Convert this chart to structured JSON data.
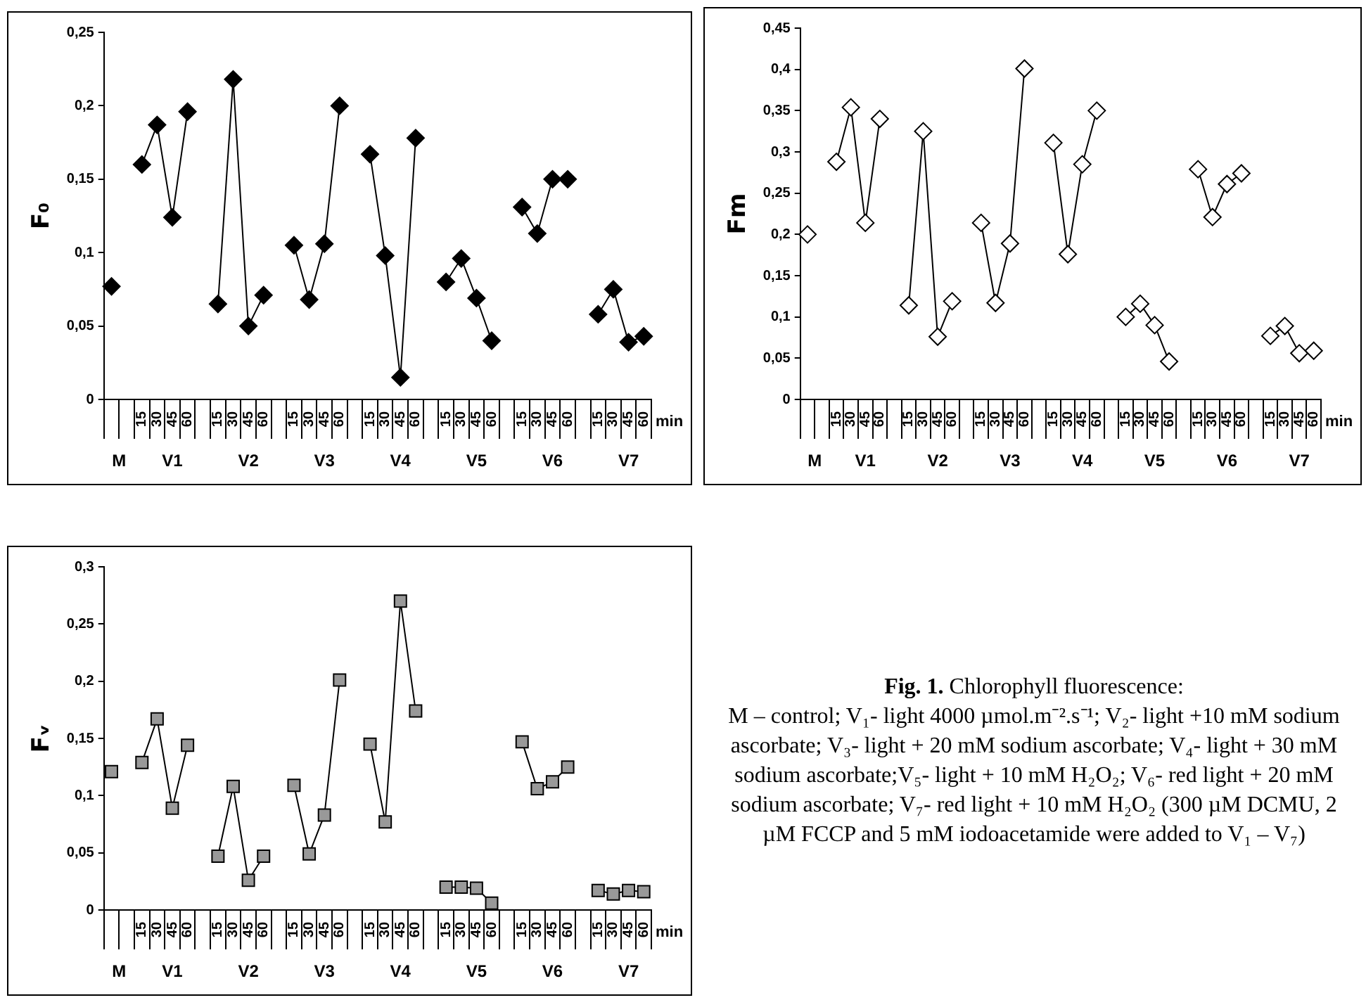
{
  "chart_data": [
    {
      "type": "line",
      "ylabel": "F₀",
      "xlabel": "min",
      "marker": "diamond",
      "categories": [
        null,
        null,
        "15",
        "30",
        "45",
        "60",
        null,
        "15",
        "30",
        "45",
        "60",
        null,
        "15",
        "30",
        "45",
        "60",
        null,
        "15",
        "30",
        "45",
        "60",
        null,
        "15",
        "30",
        "45",
        "60",
        null,
        "15",
        "30",
        "45",
        "60",
        null,
        "15",
        "30",
        "45",
        "60"
      ],
      "series": [
        {
          "color": "#000000",
          "values": [
            0.077,
            null,
            0.16,
            0.187,
            0.124,
            0.196,
            null,
            0.065,
            0.218,
            0.05,
            0.071,
            null,
            0.105,
            0.068,
            0.106,
            0.2,
            null,
            0.167,
            0.098,
            0.015,
            0.178,
            null,
            0.08,
            0.096,
            0.069,
            0.04,
            null,
            0.131,
            0.113,
            0.15,
            0.15,
            null,
            0.058,
            0.075,
            0.039,
            0.043
          ]
        }
      ],
      "ylim": [
        0,
        0.25
      ],
      "yticks": [
        {
          "value": 0,
          "label": "0"
        },
        {
          "value": 0.05,
          "label": "0,05"
        },
        {
          "value": 0.1,
          "label": "0,1"
        },
        {
          "value": 0.15,
          "label": "0,15"
        },
        {
          "value": 0.2,
          "label": "0,2"
        },
        {
          "value": 0.25,
          "label": "0,25"
        }
      ],
      "annotations": [
        "M",
        "V1",
        "V2",
        "V3",
        "V4",
        "V5",
        "V6",
        "V7"
      ]
    },
    {
      "type": "line",
      "ylabel": "Fm",
      "xlabel": "min",
      "marker": "diamond",
      "categories": [
        null,
        null,
        "15",
        "30",
        "45",
        "60",
        null,
        "15",
        "30",
        "45",
        "60",
        null,
        "15",
        "30",
        "45",
        "60",
        null,
        "15",
        "30",
        "45",
        "60",
        null,
        "15",
        "30",
        "45",
        "60",
        null,
        "15",
        "30",
        "45",
        "60",
        null,
        "15",
        "30",
        "45",
        "60"
      ],
      "series": [
        {
          "color": "#ffffff",
          "values": [
            0.2,
            null,
            0.288,
            0.354,
            0.214,
            0.34,
            null,
            0.114,
            0.325,
            0.076,
            0.119,
            null,
            0.214,
            0.117,
            0.189,
            0.401,
            null,
            0.311,
            0.176,
            0.285,
            0.35,
            null,
            0.1,
            0.116,
            0.09,
            0.046,
            null,
            0.279,
            0.221,
            0.261,
            0.274,
            null,
            0.077,
            0.089,
            0.056,
            0.059
          ]
        }
      ],
      "ylim": [
        0,
        0.45
      ],
      "yticks": [
        {
          "value": 0,
          "label": "0"
        },
        {
          "value": 0.05,
          "label": "0,05"
        },
        {
          "value": 0.1,
          "label": "0,1"
        },
        {
          "value": 0.15,
          "label": "0,15"
        },
        {
          "value": 0.2,
          "label": "0,2"
        },
        {
          "value": 0.25,
          "label": "0,25"
        },
        {
          "value": 0.3,
          "label": "0,3"
        },
        {
          "value": 0.35,
          "label": "0,35"
        },
        {
          "value": 0.4,
          "label": "0,4"
        },
        {
          "value": 0.45,
          "label": "0,45"
        }
      ],
      "annotations": [
        "M",
        "V1",
        "V2",
        "V3",
        "V4",
        "V5",
        "V6",
        "V7"
      ]
    },
    {
      "type": "line",
      "ylabel": "Fᵥ",
      "xlabel": "min",
      "marker": "square",
      "categories": [
        null,
        null,
        "15",
        "30",
        "45",
        "60",
        null,
        "15",
        "30",
        "45",
        "60",
        null,
        "15",
        "30",
        "45",
        "60",
        null,
        "15",
        "30",
        "45",
        "60",
        null,
        "15",
        "30",
        "45",
        "60",
        null,
        "15",
        "30",
        "45",
        "60",
        null,
        "15",
        "30",
        "45",
        "60"
      ],
      "series": [
        {
          "color": "#999999",
          "values": [
            0.121,
            null,
            0.129,
            0.167,
            0.089,
            0.144,
            null,
            0.047,
            0.108,
            0.026,
            0.047,
            null,
            0.109,
            0.049,
            0.083,
            0.201,
            null,
            0.145,
            0.077,
            0.27,
            0.174,
            null,
            0.02,
            0.02,
            0.019,
            0.006,
            null,
            0.147,
            0.106,
            0.112,
            0.125,
            null,
            0.017,
            0.014,
            0.017,
            0.016
          ]
        }
      ],
      "ylim": [
        0,
        0.3
      ],
      "yticks": [
        {
          "value": 0,
          "label": "0"
        },
        {
          "value": 0.05,
          "label": "0,05"
        },
        {
          "value": 0.1,
          "label": "0,1"
        },
        {
          "value": 0.15,
          "label": "0,15"
        },
        {
          "value": 0.2,
          "label": "0,2"
        },
        {
          "value": 0.25,
          "label": "0,25"
        },
        {
          "value": 0.3,
          "label": "0,3"
        }
      ],
      "annotations": [
        "M",
        "V1",
        "V2",
        "V3",
        "V4",
        "V5",
        "V6",
        "V7"
      ]
    },
    {
      "type": "other",
      "title": "Fig. 1.",
      "subtitle": "Chlorophyll fluorescence:",
      "annotations": [
        "M – control; V₁- light 4000 µmol.m⁻².s⁻¹; V₂- light +10 mM sodium ascorbate; V₃- light + 20 mM sodium ascorbate; V₄- light + 30 mM sodium ascorbate;V₅- light + 10 mM H₂O₂; V₆- red light + 20 mM sodium ascorbate; V₇- red light + 10 mM H₂O₂ (300 µM DCMU, 2 µM FCCP and 5 mM iodoacetamide were added to V₁ – V₇)"
      ]
    }
  ]
}
